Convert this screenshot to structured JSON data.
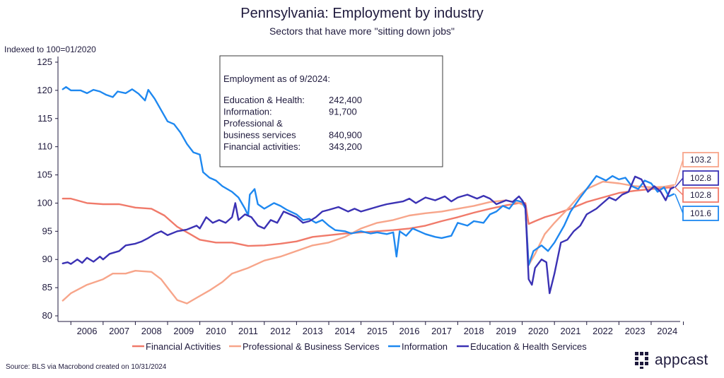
{
  "chart_data": {
    "type": "line",
    "title": "Pennsylvania: Employment by industry",
    "subtitle": "Sectors that have more \"sitting down jobs\"",
    "ylabel": "Indexed to 100=01/2020",
    "ylim": [
      79,
      126
    ],
    "yticks": [
      80,
      85,
      90,
      95,
      100,
      105,
      110,
      115,
      120,
      125
    ],
    "xrange": [
      2005.6,
      2024.9
    ],
    "xticks": [
      "2006",
      "2007",
      "2008",
      "2009",
      "2010",
      "2011",
      "2012",
      "2013",
      "2014",
      "2015",
      "2016",
      "2017",
      "2018",
      "2019",
      "2020",
      "2021",
      "2022",
      "2023",
      "2024"
    ],
    "series": [
      {
        "name": "Financial Activities",
        "color": "#f07a6a",
        "end_label": "102.8",
        "points": [
          [
            2005.75,
            100.8
          ],
          [
            2006.0,
            100.8
          ],
          [
            2006.5,
            100.0
          ],
          [
            2007.0,
            99.8
          ],
          [
            2007.5,
            99.8
          ],
          [
            2008.0,
            99.2
          ],
          [
            2008.5,
            99.0
          ],
          [
            2008.9,
            97.8
          ],
          [
            2009.3,
            95.8
          ],
          [
            2009.7,
            94.5
          ],
          [
            2010.0,
            93.5
          ],
          [
            2010.5,
            93.0
          ],
          [
            2011.0,
            93.0
          ],
          [
            2011.5,
            92.4
          ],
          [
            2012.0,
            92.5
          ],
          [
            2012.5,
            92.8
          ],
          [
            2013.0,
            93.2
          ],
          [
            2013.5,
            94.0
          ],
          [
            2014.0,
            94.3
          ],
          [
            2014.5,
            94.6
          ],
          [
            2015.0,
            94.8
          ],
          [
            2015.5,
            95.0
          ],
          [
            2016.0,
            95.2
          ],
          [
            2016.5,
            95.5
          ],
          [
            2017.0,
            96.0
          ],
          [
            2017.5,
            96.8
          ],
          [
            2018.0,
            97.5
          ],
          [
            2018.5,
            98.3
          ],
          [
            2019.0,
            99.0
          ],
          [
            2019.5,
            99.6
          ],
          [
            2019.9,
            100.0
          ],
          [
            2020.1,
            100.0
          ],
          [
            2020.2,
            96.3
          ],
          [
            2020.4,
            96.8
          ],
          [
            2020.7,
            97.5
          ],
          [
            2021.0,
            98.0
          ],
          [
            2021.5,
            99.0
          ],
          [
            2022.0,
            100.2
          ],
          [
            2022.5,
            101.0
          ],
          [
            2023.0,
            101.8
          ],
          [
            2023.5,
            102.2
          ],
          [
            2024.0,
            102.5
          ],
          [
            2024.4,
            102.7
          ],
          [
            2024.7,
            102.8
          ]
        ]
      },
      {
        "name": "Professional & Business Services",
        "color": "#f7a58a",
        "end_label": "103.2",
        "points": [
          [
            2005.75,
            82.7
          ],
          [
            2006.0,
            84.0
          ],
          [
            2006.5,
            85.5
          ],
          [
            2007.0,
            86.5
          ],
          [
            2007.3,
            87.5
          ],
          [
            2007.7,
            87.5
          ],
          [
            2008.0,
            88.0
          ],
          [
            2008.5,
            87.8
          ],
          [
            2008.8,
            86.5
          ],
          [
            2009.0,
            85.0
          ],
          [
            2009.3,
            82.8
          ],
          [
            2009.6,
            82.2
          ],
          [
            2009.9,
            83.2
          ],
          [
            2010.3,
            84.5
          ],
          [
            2010.7,
            86.0
          ],
          [
            2011.0,
            87.5
          ],
          [
            2011.5,
            88.5
          ],
          [
            2012.0,
            89.8
          ],
          [
            2012.5,
            90.5
          ],
          [
            2013.0,
            91.5
          ],
          [
            2013.5,
            92.5
          ],
          [
            2014.0,
            93.0
          ],
          [
            2014.5,
            94.0
          ],
          [
            2015.0,
            95.5
          ],
          [
            2015.5,
            96.5
          ],
          [
            2016.0,
            97.0
          ],
          [
            2016.5,
            97.8
          ],
          [
            2017.0,
            98.2
          ],
          [
            2017.5,
            98.5
          ],
          [
            2018.0,
            99.0
          ],
          [
            2018.5,
            99.5
          ],
          [
            2019.0,
            100.2
          ],
          [
            2019.5,
            100.5
          ],
          [
            2019.9,
            100.0
          ],
          [
            2020.1,
            99.5
          ],
          [
            2020.2,
            89.0
          ],
          [
            2020.4,
            91.0
          ],
          [
            2020.7,
            94.5
          ],
          [
            2021.0,
            96.5
          ],
          [
            2021.5,
            99.5
          ],
          [
            2021.8,
            101.5
          ],
          [
            2022.0,
            102.5
          ],
          [
            2022.5,
            103.8
          ],
          [
            2023.0,
            103.5
          ],
          [
            2023.5,
            103.0
          ],
          [
            2024.0,
            102.8
          ],
          [
            2024.4,
            102.9
          ],
          [
            2024.7,
            103.2
          ]
        ]
      },
      {
        "name": "Information",
        "color": "#1e88f0",
        "end_label": "101.6",
        "points": [
          [
            2005.75,
            120.2
          ],
          [
            2005.85,
            120.6
          ],
          [
            2006.0,
            120.0
          ],
          [
            2006.3,
            120.0
          ],
          [
            2006.5,
            119.5
          ],
          [
            2006.7,
            120.1
          ],
          [
            2006.9,
            119.8
          ],
          [
            2007.1,
            119.2
          ],
          [
            2007.3,
            118.8
          ],
          [
            2007.45,
            119.8
          ],
          [
            2007.7,
            119.5
          ],
          [
            2007.9,
            120.2
          ],
          [
            2008.1,
            119.4
          ],
          [
            2008.3,
            118.2
          ],
          [
            2008.4,
            120.1
          ],
          [
            2008.6,
            118.5
          ],
          [
            2008.8,
            116.5
          ],
          [
            2009.0,
            114.5
          ],
          [
            2009.2,
            114.0
          ],
          [
            2009.4,
            112.5
          ],
          [
            2009.6,
            110.5
          ],
          [
            2009.8,
            109.0
          ],
          [
            2010.0,
            108.6
          ],
          [
            2010.1,
            105.5
          ],
          [
            2010.3,
            104.5
          ],
          [
            2010.5,
            104.0
          ],
          [
            2010.7,
            103.0
          ],
          [
            2011.0,
            102.0
          ],
          [
            2011.2,
            101.0
          ],
          [
            2011.4,
            99.0
          ],
          [
            2011.5,
            97.8
          ],
          [
            2011.55,
            101.5
          ],
          [
            2011.7,
            102.5
          ],
          [
            2011.8,
            99.8
          ],
          [
            2012.0,
            99.0
          ],
          [
            2012.3,
            100.0
          ],
          [
            2012.5,
            99.5
          ],
          [
            2012.7,
            98.8
          ],
          [
            2013.0,
            98.0
          ],
          [
            2013.2,
            97.0
          ],
          [
            2013.4,
            97.2
          ],
          [
            2013.6,
            96.5
          ],
          [
            2013.8,
            97.0
          ],
          [
            2014.0,
            96.0
          ],
          [
            2014.2,
            95.2
          ],
          [
            2014.5,
            95.0
          ],
          [
            2014.7,
            94.6
          ],
          [
            2015.0,
            95.0
          ],
          [
            2015.3,
            94.6
          ],
          [
            2015.5,
            94.8
          ],
          [
            2015.8,
            94.5
          ],
          [
            2016.0,
            94.8
          ],
          [
            2016.1,
            90.5
          ],
          [
            2016.2,
            95.0
          ],
          [
            2016.4,
            94.2
          ],
          [
            2016.6,
            95.5
          ],
          [
            2016.8,
            95.0
          ],
          [
            2017.0,
            94.5
          ],
          [
            2017.3,
            94.0
          ],
          [
            2017.5,
            93.8
          ],
          [
            2017.8,
            94.2
          ],
          [
            2018.0,
            96.5
          ],
          [
            2018.3,
            96.0
          ],
          [
            2018.5,
            96.8
          ],
          [
            2018.8,
            96.5
          ],
          [
            2019.0,
            98.0
          ],
          [
            2019.2,
            98.5
          ],
          [
            2019.4,
            99.5
          ],
          [
            2019.6,
            99.0
          ],
          [
            2019.8,
            100.5
          ],
          [
            2020.0,
            100.2
          ],
          [
            2020.1,
            99.0
          ],
          [
            2020.2,
            89.0
          ],
          [
            2020.35,
            91.5
          ],
          [
            2020.6,
            92.5
          ],
          [
            2020.8,
            91.5
          ],
          [
            2021.0,
            93.0
          ],
          [
            2021.3,
            96.0
          ],
          [
            2021.5,
            98.5
          ],
          [
            2021.8,
            101.0
          ],
          [
            2022.0,
            102.5
          ],
          [
            2022.3,
            104.8
          ],
          [
            2022.6,
            104.0
          ],
          [
            2022.8,
            104.8
          ],
          [
            2023.0,
            104.2
          ],
          [
            2023.2,
            104.5
          ],
          [
            2023.4,
            103.0
          ],
          [
            2023.6,
            102.5
          ],
          [
            2023.8,
            104.0
          ],
          [
            2024.0,
            103.5
          ],
          [
            2024.2,
            102.0
          ],
          [
            2024.4,
            102.8
          ],
          [
            2024.55,
            101.2
          ],
          [
            2024.7,
            101.6
          ]
        ]
      },
      {
        "name": "Education & Health Services",
        "color": "#3b32b4",
        "end_label": "102.8",
        "points": [
          [
            2005.75,
            89.3
          ],
          [
            2005.9,
            89.5
          ],
          [
            2006.0,
            89.2
          ],
          [
            2006.2,
            90.0
          ],
          [
            2006.35,
            89.4
          ],
          [
            2006.5,
            90.3
          ],
          [
            2006.7,
            89.6
          ],
          [
            2006.9,
            90.5
          ],
          [
            2007.0,
            90.0
          ],
          [
            2007.2,
            91.0
          ],
          [
            2007.5,
            91.5
          ],
          [
            2007.7,
            92.5
          ],
          [
            2008.0,
            92.8
          ],
          [
            2008.2,
            93.2
          ],
          [
            2008.4,
            93.8
          ],
          [
            2008.6,
            94.5
          ],
          [
            2008.8,
            95.0
          ],
          [
            2009.0,
            94.3
          ],
          [
            2009.3,
            95.0
          ],
          [
            2009.6,
            95.3
          ],
          [
            2009.9,
            96.0
          ],
          [
            2010.0,
            95.5
          ],
          [
            2010.2,
            97.5
          ],
          [
            2010.4,
            96.5
          ],
          [
            2010.6,
            97.0
          ],
          [
            2010.8,
            96.5
          ],
          [
            2011.0,
            97.5
          ],
          [
            2011.1,
            100.0
          ],
          [
            2011.2,
            97.0
          ],
          [
            2011.4,
            98.0
          ],
          [
            2011.6,
            97.5
          ],
          [
            2011.8,
            96.0
          ],
          [
            2012.0,
            95.5
          ],
          [
            2012.2,
            97.0
          ],
          [
            2012.4,
            96.5
          ],
          [
            2012.6,
            98.5
          ],
          [
            2012.8,
            98.0
          ],
          [
            2013.0,
            97.5
          ],
          [
            2013.2,
            96.5
          ],
          [
            2013.4,
            96.8
          ],
          [
            2013.6,
            97.5
          ],
          [
            2013.8,
            98.5
          ],
          [
            2014.0,
            98.8
          ],
          [
            2014.3,
            99.3
          ],
          [
            2014.6,
            98.5
          ],
          [
            2014.8,
            99.0
          ],
          [
            2015.0,
            98.5
          ],
          [
            2015.3,
            99.0
          ],
          [
            2015.6,
            99.5
          ],
          [
            2015.8,
            99.8
          ],
          [
            2016.0,
            100.0
          ],
          [
            2016.3,
            100.3
          ],
          [
            2016.5,
            100.8
          ],
          [
            2016.7,
            100.0
          ],
          [
            2017.0,
            101.0
          ],
          [
            2017.3,
            100.5
          ],
          [
            2017.6,
            101.2
          ],
          [
            2017.8,
            100.3
          ],
          [
            2018.0,
            101.0
          ],
          [
            2018.3,
            101.5
          ],
          [
            2018.6,
            100.8
          ],
          [
            2018.8,
            101.3
          ],
          [
            2019.0,
            100.8
          ],
          [
            2019.2,
            99.8
          ],
          [
            2019.5,
            100.5
          ],
          [
            2019.7,
            100.2
          ],
          [
            2019.9,
            101.2
          ],
          [
            2020.0,
            100.5
          ],
          [
            2020.1,
            99.5
          ],
          [
            2020.2,
            86.5
          ],
          [
            2020.3,
            85.5
          ],
          [
            2020.4,
            88.5
          ],
          [
            2020.6,
            90.0
          ],
          [
            2020.75,
            89.5
          ],
          [
            2020.85,
            84.0
          ],
          [
            2021.0,
            87.5
          ],
          [
            2021.2,
            93.0
          ],
          [
            2021.4,
            93.5
          ],
          [
            2021.6,
            95.0
          ],
          [
            2021.8,
            96.0
          ],
          [
            2022.0,
            98.0
          ],
          [
            2022.3,
            99.0
          ],
          [
            2022.5,
            100.0
          ],
          [
            2022.7,
            101.0
          ],
          [
            2022.9,
            100.5
          ],
          [
            2023.1,
            101.5
          ],
          [
            2023.3,
            102.0
          ],
          [
            2023.5,
            104.7
          ],
          [
            2023.7,
            104.2
          ],
          [
            2023.9,
            102.0
          ],
          [
            2024.1,
            103.0
          ],
          [
            2024.3,
            102.0
          ],
          [
            2024.45,
            100.5
          ],
          [
            2024.6,
            102.5
          ],
          [
            2024.7,
            102.8
          ]
        ]
      }
    ],
    "annotation_box": {
      "heading": "Employment as of 9/2024:",
      "rows": [
        {
          "label": "Education & Health:",
          "value": "242,400"
        },
        {
          "label": "Information:",
          "value": "91,700"
        },
        {
          "label": "Professional &",
          "value": ""
        },
        {
          "label": "business services",
          "value": "840,900"
        },
        {
          "label": "Financial activities:",
          "value": "343,200"
        }
      ]
    },
    "legend_position": "bottom"
  },
  "source": "Source: BLS via Macrobond created on 10/31/2024",
  "logo_text": "appcast"
}
